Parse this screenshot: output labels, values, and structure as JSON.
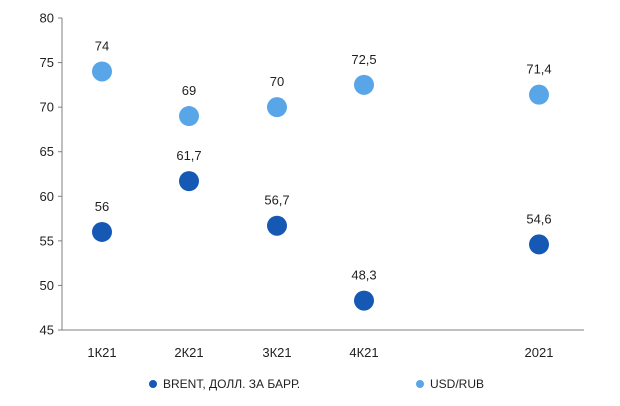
{
  "chart_data": {
    "type": "scatter",
    "categories": [
      "1К21",
      "2К21",
      "3К21",
      "4К21",
      "",
      "2021"
    ],
    "series": [
      {
        "name": "BRENT, ДОЛЛ. ЗА БАРР.",
        "color": "#1559b4",
        "values": [
          56,
          61.7,
          56.7,
          48.3,
          null,
          54.6
        ],
        "labels": [
          "56",
          "61,7",
          "56,7",
          "48,3",
          null,
          "54,6"
        ]
      },
      {
        "name": "USD/RUB",
        "color": "#58a6e8",
        "values": [
          74,
          69,
          70,
          72.5,
          null,
          71.4
        ],
        "labels": [
          "74",
          "69",
          "70",
          "72,5",
          null,
          "71,4"
        ]
      }
    ],
    "ylim": [
      45,
      80
    ],
    "yticks": [
      45,
      50,
      55,
      60,
      65,
      70,
      75,
      80
    ],
    "title": "",
    "xlabel": "",
    "ylabel": "",
    "grid": false,
    "legend": "bottom"
  }
}
